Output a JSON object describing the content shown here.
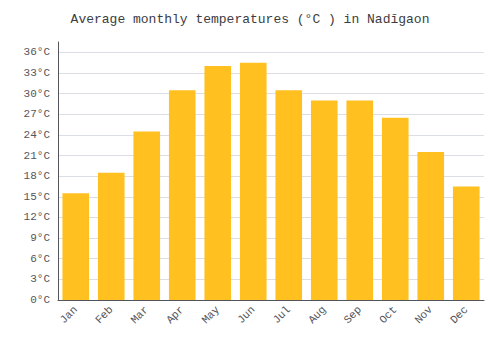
{
  "chart_data": {
    "type": "bar",
    "title": "Average monthly temperatures (°C ) in Nadīgaon",
    "categories": [
      "Jan",
      "Feb",
      "Mar",
      "Apr",
      "May",
      "Jun",
      "Jul",
      "Aug",
      "Sep",
      "Oct",
      "Nov",
      "Dec"
    ],
    "values": [
      15.5,
      18.5,
      24.5,
      30.5,
      34.0,
      34.5,
      30.5,
      29.0,
      29.0,
      26.5,
      21.5,
      16.5
    ],
    "color": "#FFC020",
    "ylim": [
      0,
      37.5
    ],
    "yticks": [
      {
        "value": 0,
        "label": "0°C"
      },
      {
        "value": 3,
        "label": "3°C"
      },
      {
        "value": 6,
        "label": "6°C"
      },
      {
        "value": 9,
        "label": "9°C"
      },
      {
        "value": 12,
        "label": "12°C"
      },
      {
        "value": 15,
        "label": "15°C"
      },
      {
        "value": 18,
        "label": "18°C"
      },
      {
        "value": 21,
        "label": "21°C"
      },
      {
        "value": 24,
        "label": "24°C"
      },
      {
        "value": 27,
        "label": "27°C"
      },
      {
        "value": 30,
        "label": "30°C"
      },
      {
        "value": 33,
        "label": "33°C"
      },
      {
        "value": 36,
        "label": "36°C"
      }
    ],
    "grid": true
  }
}
